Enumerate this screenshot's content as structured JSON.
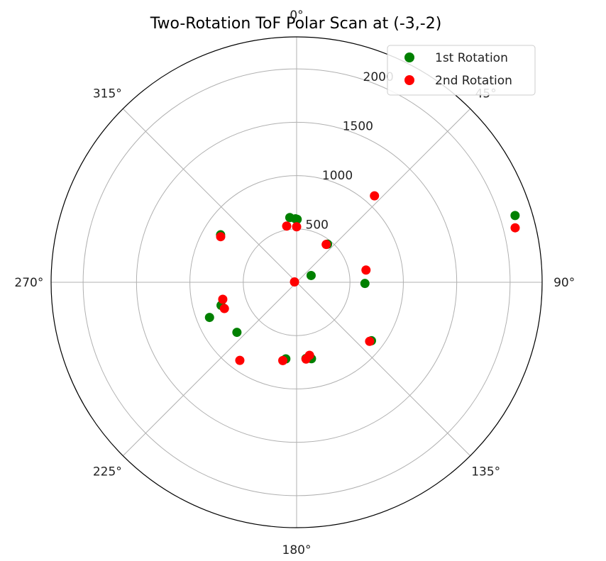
{
  "chart_data": {
    "type": "scatter",
    "projection": "polar",
    "title": "Two-Rotation ToF Polar Scan at (-3,-2)",
    "theta_zero_location": "N",
    "theta_direction": "clockwise",
    "theta_ticks": [
      "0°",
      "45°",
      "90°",
      "135°",
      "180°",
      "225°",
      "270°",
      "315°"
    ],
    "theta_tick_degrees": [
      0,
      45,
      90,
      135,
      180,
      225,
      270,
      315
    ],
    "r_ticks": [
      "500",
      "1000",
      "1500",
      "2000"
    ],
    "r_tick_values": [
      500,
      1000,
      1500,
      2000
    ],
    "rlim": [
      0,
      2300
    ],
    "grid": true,
    "legend_position": "upper right",
    "series": [
      {
        "name": "1st Rotation",
        "color": "#008000",
        "points": [
          {
            "theta": 0.5,
            "r": 590
          },
          {
            "theta": 359,
            "r": 595
          },
          {
            "theta": 354,
            "r": 610
          },
          {
            "theta": 39,
            "r": 460
          },
          {
            "theta": 65,
            "r": 150
          },
          {
            "theta": 91,
            "r": 640
          },
          {
            "theta": 128,
            "r": 890
          },
          {
            "theta": 169,
            "r": 730
          },
          {
            "theta": 173,
            "r": 720
          },
          {
            "theta": 188,
            "r": 725
          },
          {
            "theta": 230,
            "r": 730
          },
          {
            "theta": 248,
            "r": 880
          },
          {
            "theta": 253,
            "r": 740
          },
          {
            "theta": 302,
            "r": 840
          },
          {
            "theta": 73,
            "r": 2140
          }
        ]
      },
      {
        "name": "2nd Rotation",
        "color": "#ff0000",
        "points": [
          {
            "theta": 0,
            "r": 520
          },
          {
            "theta": 350,
            "r": 535
          },
          {
            "theta": 38,
            "r": 450
          },
          {
            "theta": 280,
            "r": 20
          },
          {
            "theta": 42,
            "r": 1090
          },
          {
            "theta": 80,
            "r": 660
          },
          {
            "theta": 129,
            "r": 880
          },
          {
            "theta": 170,
            "r": 695
          },
          {
            "theta": 173,
            "r": 725
          },
          {
            "theta": 190,
            "r": 745
          },
          {
            "theta": 216,
            "r": 905
          },
          {
            "theta": 250,
            "r": 720
          },
          {
            "theta": 257,
            "r": 710
          },
          {
            "theta": 301,
            "r": 830
          },
          {
            "theta": 76,
            "r": 2110
          }
        ]
      }
    ]
  }
}
